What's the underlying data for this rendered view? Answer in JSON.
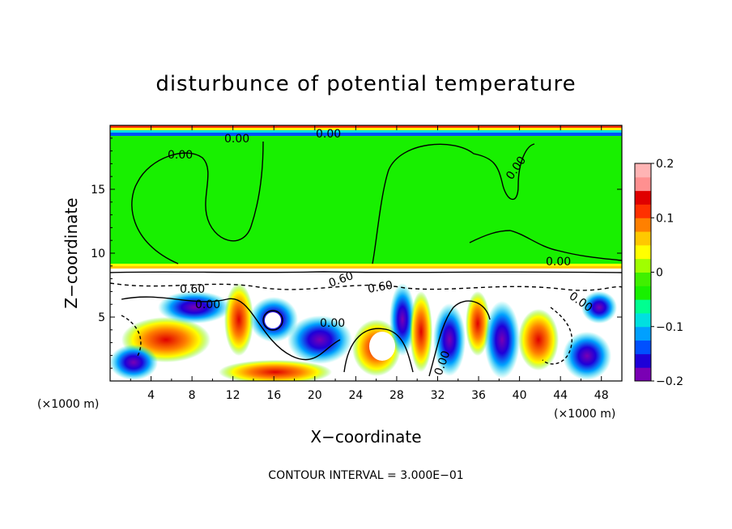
{
  "chart_data": {
    "type": "heatmap",
    "title": "disturbunce of potential temperature",
    "xlabel": "X−coordinate",
    "ylabel": "Z−coordinate",
    "x_unit": "(×1000 m)",
    "y_unit": "(×1000 m)",
    "xlim": [
      0,
      50
    ],
    "ylim": [
      0,
      20
    ],
    "x_ticks": [
      "4",
      "8",
      "12",
      "16",
      "20",
      "24",
      "28",
      "32",
      "36",
      "40",
      "44",
      "48"
    ],
    "y_ticks": [
      "5",
      "10",
      "15"
    ],
    "contour_interval_text": "CONTOUR INTERVAL = 3.000E−01",
    "contour_labels": [
      "0.00",
      "0.00",
      "0.00",
      "0.00",
      "0.00",
      "0.60",
      "0.00",
      "0.00",
      "0.60",
      "0.60",
      "0.00",
      "0.00"
    ],
    "colorbar": {
      "range": [
        -0.2,
        0.2
      ],
      "tick_labels": [
        "0.2",
        "0.1",
        "0",
        "−0.1",
        "−0.2"
      ],
      "tick_values": [
        0.2,
        0.1,
        0,
        -0.1,
        -0.2
      ],
      "colors": [
        "#7a00b4",
        "#1e00d8",
        "#0050ff",
        "#00a0ff",
        "#00e0e0",
        "#00ff90",
        "#18f000",
        "#40f000",
        "#a0ff00",
        "#ffff00",
        "#ffc800",
        "#ff8000",
        "#ff3000",
        "#e00000",
        "#ff9090",
        "#ffb4b4"
      ]
    },
    "regions": {
      "upper_layer_value": 0,
      "lower_layer": "turbulent eddies spanning about −0.2 to 0.2"
    },
    "grid": false,
    "legend": "colorbar right"
  }
}
